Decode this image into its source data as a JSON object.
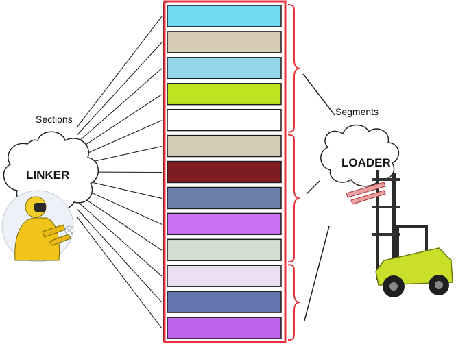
{
  "labels": {
    "sections": "Sections",
    "segments": "Segments",
    "linker": "LINKER",
    "loader": "LOADER"
  },
  "sections": [
    {
      "color": "#6fdcf3"
    },
    {
      "color": "#d7cdb7"
    },
    {
      "color": "#93d6ea"
    },
    {
      "color": "#bde321"
    },
    {
      "color": "#ffffff"
    },
    {
      "color": "#d5ccb6"
    },
    {
      "color": "#7d1c22"
    },
    {
      "color": "#6a7fa8"
    },
    {
      "color": "#c86ff2"
    },
    {
      "color": "#d3dfd3"
    },
    {
      "color": "#eddff2"
    },
    {
      "color": "#6376ad"
    },
    {
      "color": "#be63ec"
    }
  ],
  "segments": [
    {
      "first_section": 1,
      "last_section": 5
    },
    {
      "first_section": 6,
      "last_section": 10
    },
    {
      "first_section": 11,
      "last_section": 13
    }
  ],
  "colors": {
    "frame": "#e8333b",
    "lines": "#222222"
  }
}
